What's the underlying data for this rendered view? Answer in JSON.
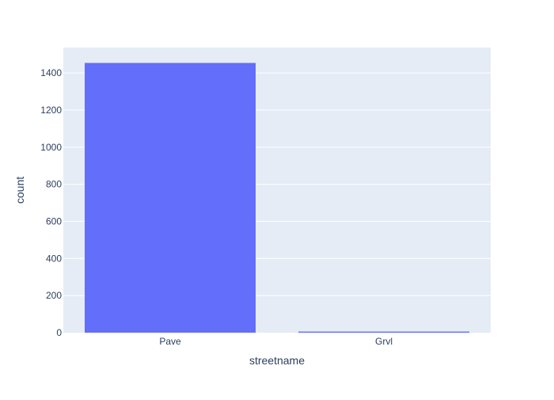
{
  "chart_data": {
    "type": "bar",
    "categories": [
      "Pave",
      "Grvl"
    ],
    "values": [
      1454,
      6
    ],
    "xlabel": "streetname",
    "ylabel": "count",
    "ylim": [
      0,
      1537
    ],
    "yticks": [
      0,
      200,
      400,
      600,
      800,
      1000,
      1200,
      1400
    ],
    "grid": true,
    "legend": "none",
    "colors": {
      "bar": "#636efa",
      "plot_background": "#e5ecf6",
      "gridline": "#ffffff",
      "text": "#2a3f5f"
    }
  }
}
